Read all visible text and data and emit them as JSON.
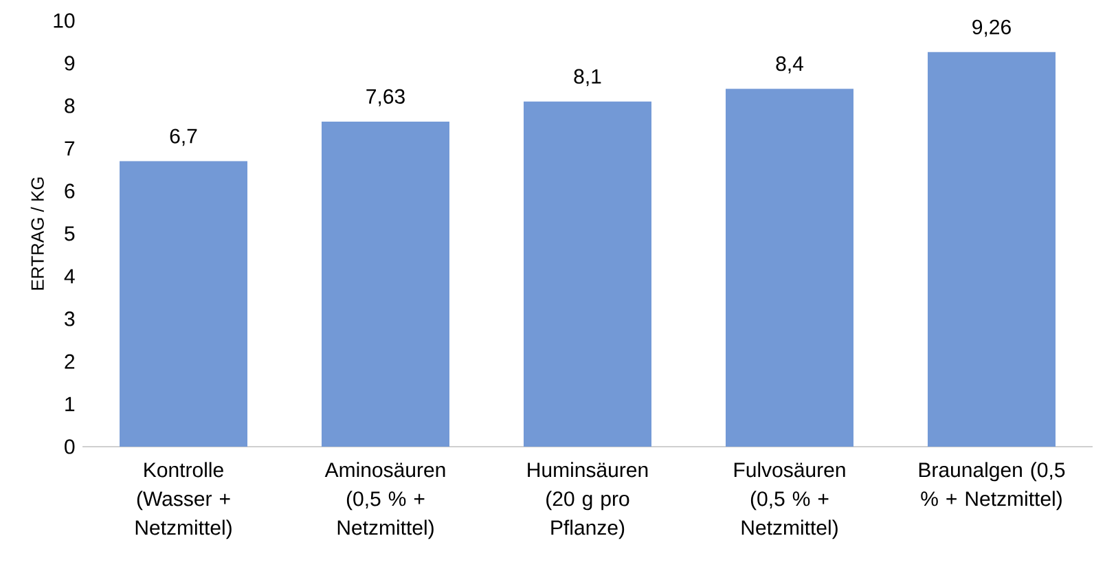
{
  "chart_data": {
    "type": "bar",
    "ylabel": "ERTRAG / KG",
    "categories": [
      "Kontrolle (Wasser + Netzmittel)",
      "Aminosäuren (0,5 % + Netzmittel)",
      "Huminsäuren (20 g pro Pflanze)",
      "Fulvosäuren (0,5 % + Netzmittel)",
      "Braunalgen (0,5 % + Netzmittel)"
    ],
    "values": [
      6.7,
      7.63,
      8.1,
      8.4,
      9.26
    ],
    "value_labels": [
      "6,7",
      "7,63",
      "8,1",
      "8,4",
      "9,26"
    ],
    "color": "#7399d6",
    "ylim": [
      0,
      10
    ],
    "yticks": [
      0,
      1,
      2,
      3,
      4,
      5,
      6,
      7,
      8,
      9,
      10
    ]
  }
}
